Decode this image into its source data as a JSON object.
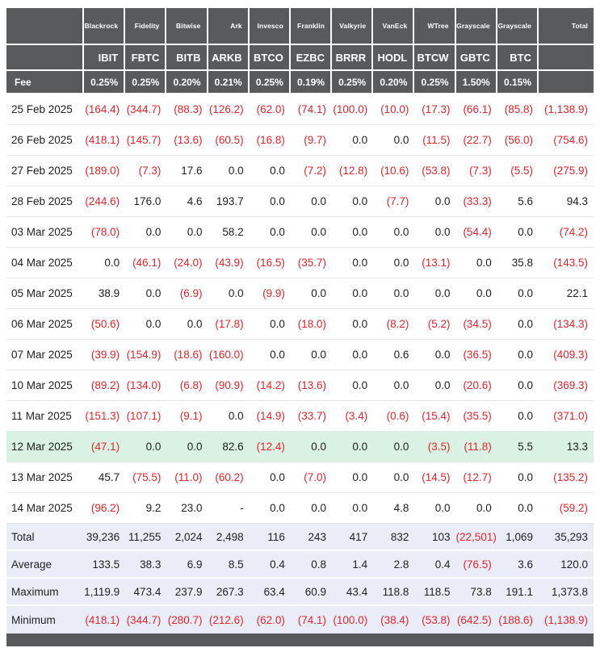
{
  "chart_data": {
    "type": "table",
    "fee_label": "Fee",
    "total_label": "Total",
    "issuers": [
      "Blackrock",
      "Fidelity",
      "Bitwise",
      "Ark",
      "Invesco",
      "Franklin",
      "Valkyrie",
      "VanEck",
      "WTree",
      "Grayscale",
      "Grayscale"
    ],
    "tickers": [
      "IBIT",
      "FBTC",
      "BITB",
      "ARKB",
      "BTCO",
      "EZBC",
      "BRRR",
      "HODL",
      "BTCW",
      "GBTC",
      "BTC"
    ],
    "fees": [
      "0.25%",
      "0.25%",
      "0.20%",
      "0.21%",
      "0.25%",
      "0.19%",
      "0.25%",
      "0.20%",
      "0.25%",
      "1.50%",
      "0.15%"
    ],
    "rows": [
      {
        "date": "25 Feb 2025",
        "highlight": false,
        "values": [
          "(164.4)",
          "(344.7)",
          "(88.3)",
          "(126.2)",
          "(62.0)",
          "(74.1)",
          "(100.0)",
          "(10.0)",
          "(17.3)",
          "(66.1)",
          "(85.8)",
          "(1,138.9)"
        ]
      },
      {
        "date": "26 Feb 2025",
        "highlight": false,
        "values": [
          "(418.1)",
          "(145.7)",
          "(13.6)",
          "(60.5)",
          "(16.8)",
          "(9.7)",
          "0.0",
          "0.0",
          "(11.5)",
          "(22.7)",
          "(56.0)",
          "(754.6)"
        ]
      },
      {
        "date": "27 Feb 2025",
        "highlight": false,
        "values": [
          "(189.0)",
          "(7.3)",
          "17.6",
          "0.0",
          "0.0",
          "(7.2)",
          "(12.8)",
          "(10.6)",
          "(53.8)",
          "(7.3)",
          "(5.5)",
          "(275.9)"
        ]
      },
      {
        "date": "28 Feb 2025",
        "highlight": false,
        "values": [
          "(244.6)",
          "176.0",
          "4.6",
          "193.7",
          "0.0",
          "0.0",
          "0.0",
          "(7.7)",
          "0.0",
          "(33.3)",
          "5.6",
          "94.3"
        ]
      },
      {
        "date": "03 Mar 2025",
        "highlight": false,
        "values": [
          "(78.0)",
          "0.0",
          "0.0",
          "58.2",
          "0.0",
          "0.0",
          "0.0",
          "0.0",
          "0.0",
          "(54.4)",
          "0.0",
          "(74.2)"
        ]
      },
      {
        "date": "04 Mar 2025",
        "highlight": false,
        "values": [
          "0.0",
          "(46.1)",
          "(24.0)",
          "(43.9)",
          "(16.5)",
          "(35.7)",
          "0.0",
          "0.0",
          "(13.1)",
          "0.0",
          "35.8",
          "(143.5)"
        ]
      },
      {
        "date": "05 Mar 2025",
        "highlight": false,
        "values": [
          "38.9",
          "0.0",
          "(6.9)",
          "0.0",
          "(9.9)",
          "0.0",
          "0.0",
          "0.0",
          "0.0",
          "0.0",
          "0.0",
          "22.1"
        ]
      },
      {
        "date": "06 Mar 2025",
        "highlight": false,
        "values": [
          "(50.6)",
          "0.0",
          "0.0",
          "(17.8)",
          "0.0",
          "(18.0)",
          "0.0",
          "(8.2)",
          "(5.2)",
          "(34.5)",
          "0.0",
          "(134.3)"
        ]
      },
      {
        "date": "07 Mar 2025",
        "highlight": false,
        "values": [
          "(39.9)",
          "(154.9)",
          "(18.6)",
          "(160.0)",
          "0.0",
          "0.0",
          "0.0",
          "0.6",
          "0.0",
          "(36.5)",
          "0.0",
          "(409.3)"
        ]
      },
      {
        "date": "10 Mar 2025",
        "highlight": false,
        "values": [
          "(89.2)",
          "(134.0)",
          "(6.8)",
          "(90.9)",
          "(14.2)",
          "(13.6)",
          "0.0",
          "0.0",
          "0.0",
          "(20.6)",
          "0.0",
          "(369.3)"
        ]
      },
      {
        "date": "11 Mar 2025",
        "highlight": false,
        "values": [
          "(151.3)",
          "(107.1)",
          "(9.1)",
          "0.0",
          "(14.9)",
          "(33.7)",
          "(3.4)",
          "(0.6)",
          "(15.4)",
          "(35.5)",
          "0.0",
          "(371.0)"
        ]
      },
      {
        "date": "12 Mar 2025",
        "highlight": true,
        "values": [
          "(47.1)",
          "0.0",
          "0.0",
          "82.6",
          "(12.4)",
          "0.0",
          "0.0",
          "0.0",
          "(3.5)",
          "(11.8)",
          "5.5",
          "13.3"
        ]
      },
      {
        "date": "13 Mar 2025",
        "highlight": false,
        "values": [
          "45.7",
          "(75.5)",
          "(11.0)",
          "(60.2)",
          "0.0",
          "(7.0)",
          "0.0",
          "0.0",
          "(14.5)",
          "(12.7)",
          "0.0",
          "(135.2)"
        ]
      },
      {
        "date": "14 Mar 2025",
        "highlight": false,
        "values": [
          "(96.2)",
          "9.2",
          "23.0",
          "-",
          "0.0",
          "0.0",
          "0.0",
          "4.8",
          "0.0",
          "0.0",
          "0.0",
          "(59.2)"
        ]
      }
    ],
    "summary_rows": [
      {
        "label": "Total",
        "values": [
          "39,236",
          "11,255",
          "2,024",
          "2,498",
          "116",
          "243",
          "417",
          "832",
          "103",
          "(22,501)",
          "1,069",
          "35,293"
        ]
      },
      {
        "label": "Average",
        "values": [
          "133.5",
          "38.3",
          "6.9",
          "8.5",
          "0.4",
          "0.8",
          "1.4",
          "2.8",
          "0.4",
          "(76.5)",
          "3.6",
          "120.0"
        ]
      },
      {
        "label": "Maximum",
        "values": [
          "1,119.9",
          "473.4",
          "237.9",
          "267.3",
          "63.4",
          "60.9",
          "43.4",
          "118.8",
          "118.5",
          "73.8",
          "191.1",
          "1,373.8"
        ]
      },
      {
        "label": "Minimum",
        "values": [
          "(418.1)",
          "(344.7)",
          "(280.7)",
          "(212.6)",
          "(62.0)",
          "(74.1)",
          "(100.0)",
          "(38.4)",
          "(53.8)",
          "(642.5)",
          "(188.6)",
          "(1,138.9)"
        ]
      }
    ],
    "colors": {
      "header_bg": "#595a5c",
      "negative_text": "#e5242b",
      "highlight_row_bg": "#d9f2e3",
      "summary_row_bg": "#eaedf7",
      "footer_bar_bg": "#595a5c"
    }
  }
}
